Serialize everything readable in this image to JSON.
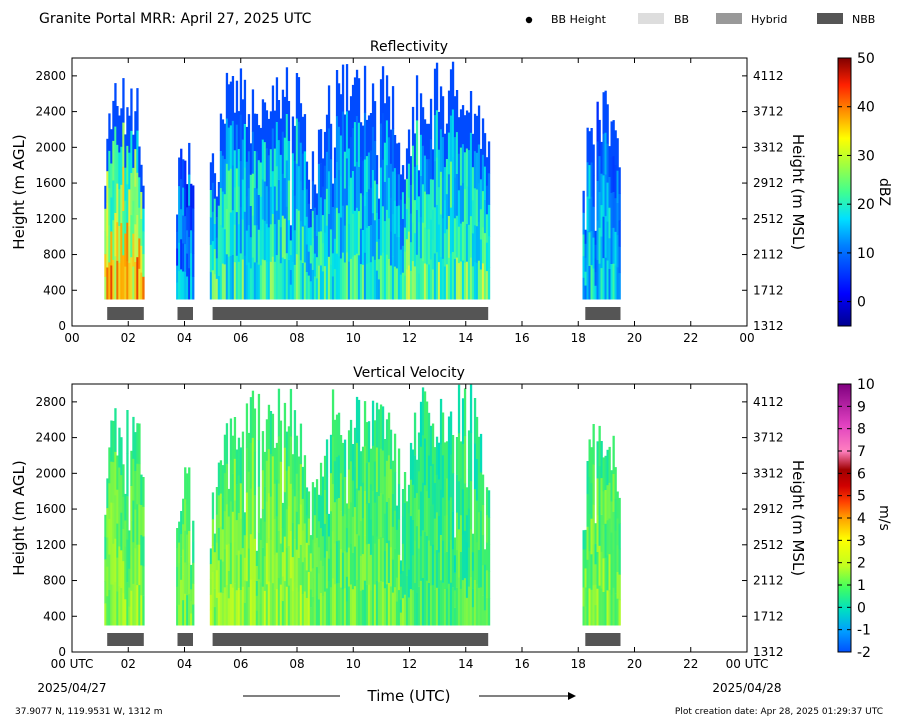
{
  "header": {
    "title": "Granite Portal MRR:  April 27, 2025 UTC",
    "legend": [
      {
        "label": "BB Height",
        "kind": "dot",
        "color": "#000000"
      },
      {
        "label": "BB",
        "kind": "swatch",
        "color": "#dddddd"
      },
      {
        "label": "Hybrid",
        "kind": "swatch",
        "color": "#999999"
      },
      {
        "label": "NBB",
        "kind": "swatch",
        "color": "#555555"
      }
    ]
  },
  "footer": {
    "location": "37.9077 N, 119.9531 W, 1312 m",
    "creation": "Plot creation date: Apr 28, 2025 01:29:37 UTC",
    "xlabel": "Time (UTC)",
    "start_date": "2025/04/27",
    "end_date": "2025/04/28"
  },
  "chart_data": [
    {
      "type": "heatmap",
      "title": "Reflectivity",
      "ylabel": "Height (m AGL)",
      "ylabel_right": "Height (m MSL)",
      "xlim": [
        0,
        24
      ],
      "ylim": [
        0,
        3000
      ],
      "x_ticks": [
        "00",
        "02",
        "04",
        "06",
        "08",
        "10",
        "12",
        "14",
        "16",
        "18",
        "20",
        "22",
        "00"
      ],
      "y_ticks": [
        0,
        400,
        800,
        1200,
        1600,
        2000,
        2400,
        2800
      ],
      "y_ticks_right": [
        1312,
        1712,
        2112,
        2512,
        2912,
        3312,
        3712,
        4112
      ],
      "colorbar": {
        "label": "dBZ",
        "min": -5,
        "max": 50,
        "ticks": [
          0,
          10,
          20,
          30,
          40,
          50
        ]
      },
      "precip_periods": [
        {
          "start": 1.15,
          "end": 2.55,
          "top": 2800,
          "intensity": 0.75
        },
        {
          "start": 3.7,
          "end": 4.3,
          "top": 2100,
          "intensity": 0.25
        },
        {
          "start": 4.9,
          "end": 8.6,
          "top": 2950,
          "intensity": 0.45
        },
        {
          "start": 8.6,
          "end": 11.8,
          "top": 2950,
          "intensity": 0.42
        },
        {
          "start": 11.8,
          "end": 14.8,
          "top": 3000,
          "intensity": 0.5
        },
        {
          "start": 18.15,
          "end": 19.5,
          "top": 2650,
          "intensity": 0.35
        }
      ],
      "bb_segments": [
        {
          "start": 1.25,
          "end": 2.55,
          "class": "NBB"
        },
        {
          "start": 3.75,
          "end": 4.3,
          "class": "NBB"
        },
        {
          "start": 5.0,
          "end": 14.8,
          "class": "NBB"
        },
        {
          "start": 18.25,
          "end": 19.5,
          "class": "NBB"
        }
      ]
    },
    {
      "type": "heatmap",
      "title": "Vertical Velocity",
      "ylabel": "Height (m AGL)",
      "ylabel_right": "Height (m MSL)",
      "xlim": [
        0,
        24
      ],
      "ylim": [
        0,
        3000
      ],
      "x_ticks": [
        "00 UTC",
        "02",
        "04",
        "06",
        "08",
        "10",
        "12",
        "14",
        "16",
        "18",
        "20",
        "22",
        "00 UTC"
      ],
      "y_ticks": [
        0,
        400,
        800,
        1200,
        1600,
        2000,
        2400,
        2800
      ],
      "y_ticks_right": [
        1312,
        1712,
        2112,
        2512,
        2912,
        3312,
        3712,
        4112
      ],
      "colorbar": {
        "label": "m/s",
        "min": -2,
        "max": 10,
        "ticks": [
          -2,
          -1,
          0,
          1,
          2,
          3,
          4,
          5,
          6,
          7,
          8,
          9,
          10
        ]
      },
      "precip_periods": [
        {
          "start": 1.15,
          "end": 2.55,
          "top": 2800,
          "intensity": 0.55
        },
        {
          "start": 3.7,
          "end": 4.3,
          "top": 2100,
          "intensity": 0.5
        },
        {
          "start": 4.9,
          "end": 8.6,
          "top": 2950,
          "intensity": 0.6
        },
        {
          "start": 8.6,
          "end": 11.8,
          "top": 2950,
          "intensity": 0.45
        },
        {
          "start": 11.8,
          "end": 14.8,
          "top": 3000,
          "intensity": 0.35
        },
        {
          "start": 18.15,
          "end": 19.5,
          "top": 2650,
          "intensity": 0.55
        }
      ],
      "bb_segments": [
        {
          "start": 1.25,
          "end": 2.55,
          "class": "NBB"
        },
        {
          "start": 3.75,
          "end": 4.3,
          "class": "NBB"
        },
        {
          "start": 5.0,
          "end": 14.8,
          "class": "NBB"
        },
        {
          "start": 18.25,
          "end": 19.5,
          "class": "NBB"
        }
      ]
    }
  ]
}
